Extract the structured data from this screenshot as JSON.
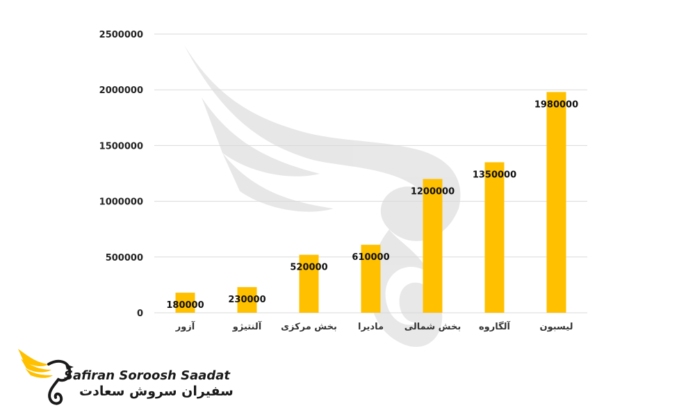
{
  "chart_data": {
    "type": "bar",
    "categories": [
      "آزور",
      "آلنتیژو",
      "بخش مرکزی",
      "مادیرا",
      "بخش شمالی",
      "آلگاروه",
      "لیسبون"
    ],
    "values": [
      180000,
      230000,
      520000,
      610000,
      1200000,
      1350000,
      1980000
    ],
    "ylim": [
      0,
      2500000
    ],
    "yticks": [
      0,
      500000,
      1000000,
      1500000,
      2000000,
      2500000
    ],
    "grid": true,
    "legend": "none",
    "bar_color": "#ffc000",
    "grid_color": "#d9d9d9"
  },
  "logo": {
    "text_en": "Safiran Soroosh Saadat",
    "text_fa": "سفیران سروش سعادت",
    "icon": "swan-wing-icon",
    "accent": "#ffc000"
  },
  "watermark": {
    "icon": "swan-wing-watermark"
  }
}
